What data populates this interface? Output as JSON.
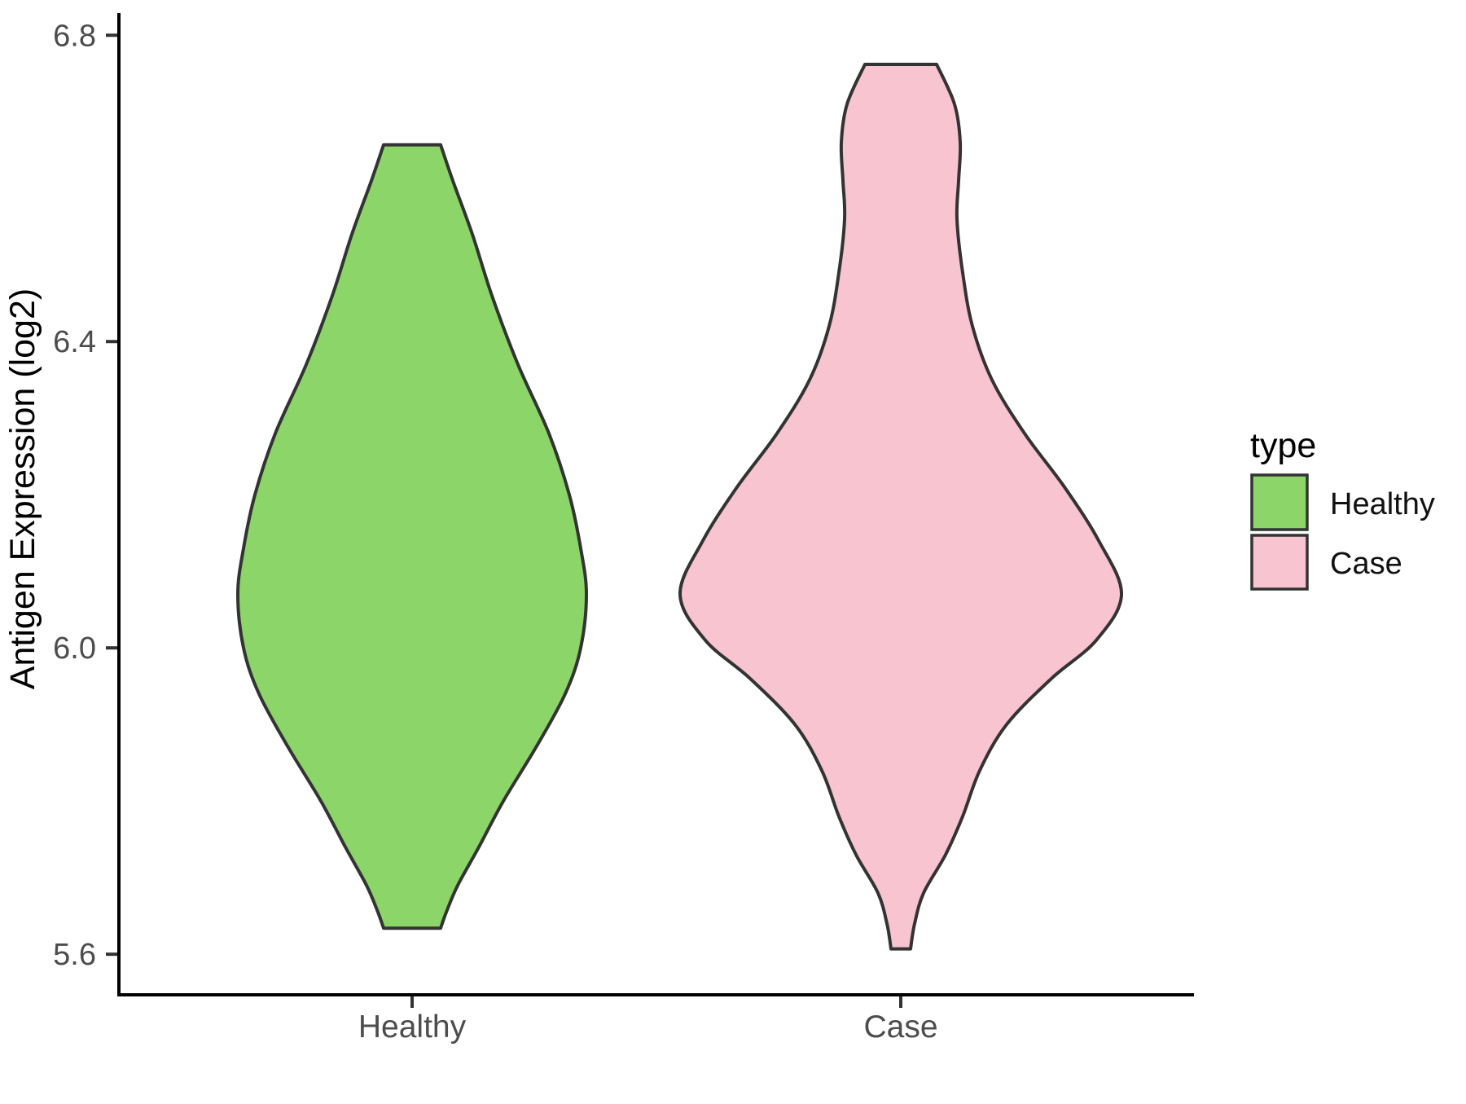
{
  "figure": {
    "background": "#ffffff"
  },
  "axes": {
    "y": {
      "label": "Antigen Expression (log2)",
      "range": [
        5.547,
        6.829
      ],
      "ticks": [
        {
          "value": 6.8,
          "label": "6.8"
        },
        {
          "value": 6.4,
          "label": "6.4"
        },
        {
          "value": 6.0,
          "label": "6.0"
        },
        {
          "value": 5.6,
          "label": "5.6"
        }
      ]
    },
    "x": {
      "categories": [
        "Healthy",
        "Case"
      ]
    }
  },
  "legend": {
    "title": "type",
    "entries": [
      {
        "label": "Healthy",
        "color": "#8CD568"
      },
      {
        "label": "Case",
        "color": "#F7C4CF"
      }
    ]
  },
  "style": {
    "violin_stroke": "#333333",
    "violin_stroke_width": 4,
    "axis_line_color": "#000000",
    "tick_mark_color": "#333333",
    "tick_label_color": "#4D4D4D",
    "legend_key_stroke": "#333333"
  },
  "chart_data": {
    "type": "violin",
    "title": "",
    "xlabel": "",
    "ylabel": "Antigen Expression (log2)",
    "categories": [
      "Healthy",
      "Case"
    ],
    "ylim": [
      5.547,
      6.829
    ],
    "y_ticks": [
      5.6,
      6.0,
      6.4,
      6.8
    ],
    "legend_title": "type",
    "legend_position": "right",
    "grid": false,
    "series": [
      {
        "name": "Healthy",
        "fill": "#8CD568",
        "data_min": 5.63,
        "data_max": 6.66,
        "peak_density_at": 6.07,
        "profile_units": "value_vs_halfwidth_px",
        "profile": [
          [
            6.657,
            35
          ],
          [
            6.61,
            50
          ],
          [
            6.54,
            74
          ],
          [
            6.46,
            98
          ],
          [
            6.37,
            130
          ],
          [
            6.28,
            168
          ],
          [
            6.2,
            193
          ],
          [
            6.13,
            207
          ],
          [
            6.07,
            214
          ],
          [
            6.0,
            207
          ],
          [
            5.94,
            188
          ],
          [
            5.87,
            152
          ],
          [
            5.8,
            112
          ],
          [
            5.74,
            82
          ],
          [
            5.69,
            56
          ],
          [
            5.655,
            42
          ],
          [
            5.634,
            35
          ]
        ]
      },
      {
        "name": "Case",
        "fill": "#F7C4CF",
        "data_min": 5.61,
        "data_max": 6.76,
        "peak_density_at": 6.07,
        "profile_units": "value_vs_halfwidth_px",
        "profile": [
          [
            6.762,
            44
          ],
          [
            6.71,
            66
          ],
          [
            6.66,
            73
          ],
          [
            6.61,
            71
          ],
          [
            6.56,
            69
          ],
          [
            6.49,
            76
          ],
          [
            6.42,
            88
          ],
          [
            6.35,
            112
          ],
          [
            6.28,
            152
          ],
          [
            6.21,
            201
          ],
          [
            6.14,
            243
          ],
          [
            6.07,
            271
          ],
          [
            6.01,
            240
          ],
          [
            5.96,
            185
          ],
          [
            5.9,
            130
          ],
          [
            5.84,
            97
          ],
          [
            5.78,
            76
          ],
          [
            5.73,
            55
          ],
          [
            5.68,
            28
          ],
          [
            5.64,
            17
          ],
          [
            5.607,
            12
          ]
        ]
      }
    ]
  }
}
